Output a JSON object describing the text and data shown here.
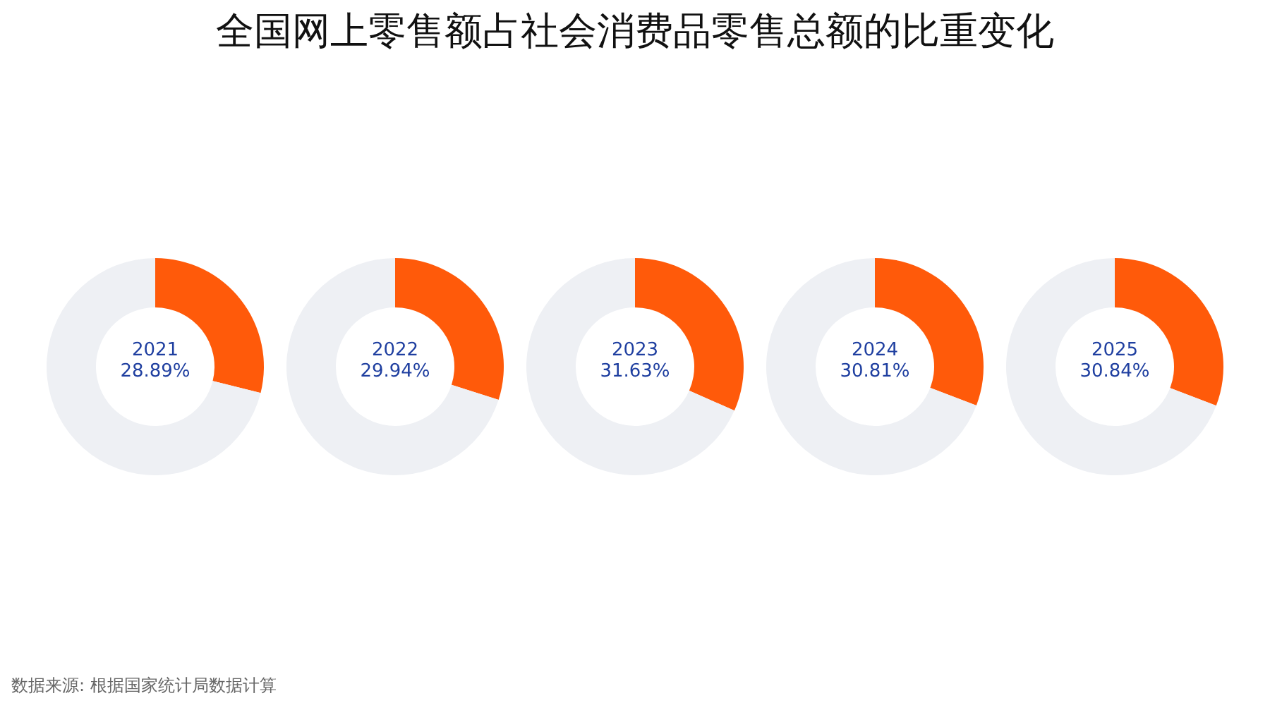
{
  "chart_data": [
    {
      "type": "other",
      "title": "全国网上零售额占社会消费品零售总额的比重变化",
      "annotations": [
        "数据来源: 根据国家统计局数据计算"
      ]
    },
    {
      "type": "donut",
      "title": "2021",
      "subtitle": "28.89%",
      "values": [
        28.89,
        71.11
      ],
      "colors": [
        "#ff5a0a",
        "#eef0f4"
      ]
    },
    {
      "type": "donut",
      "title": "2022",
      "subtitle": "29.94%",
      "values": [
        29.94,
        70.06
      ],
      "colors": [
        "#ff5a0a",
        "#eef0f4"
      ]
    },
    {
      "type": "donut",
      "title": "2023",
      "subtitle": "31.63%",
      "values": [
        31.63,
        68.37
      ],
      "colors": [
        "#ff5a0a",
        "#eef0f4"
      ]
    },
    {
      "type": "donut",
      "title": "2024",
      "subtitle": "30.81%",
      "values": [
        30.81,
        69.19
      ],
      "colors": [
        "#ff5a0a",
        "#eef0f4"
      ]
    },
    {
      "type": "donut",
      "title": "2025",
      "subtitle": "30.84%",
      "values": [
        30.84,
        69.16
      ],
      "colors": [
        "#ff5a0a",
        "#eef0f4"
      ]
    }
  ]
}
